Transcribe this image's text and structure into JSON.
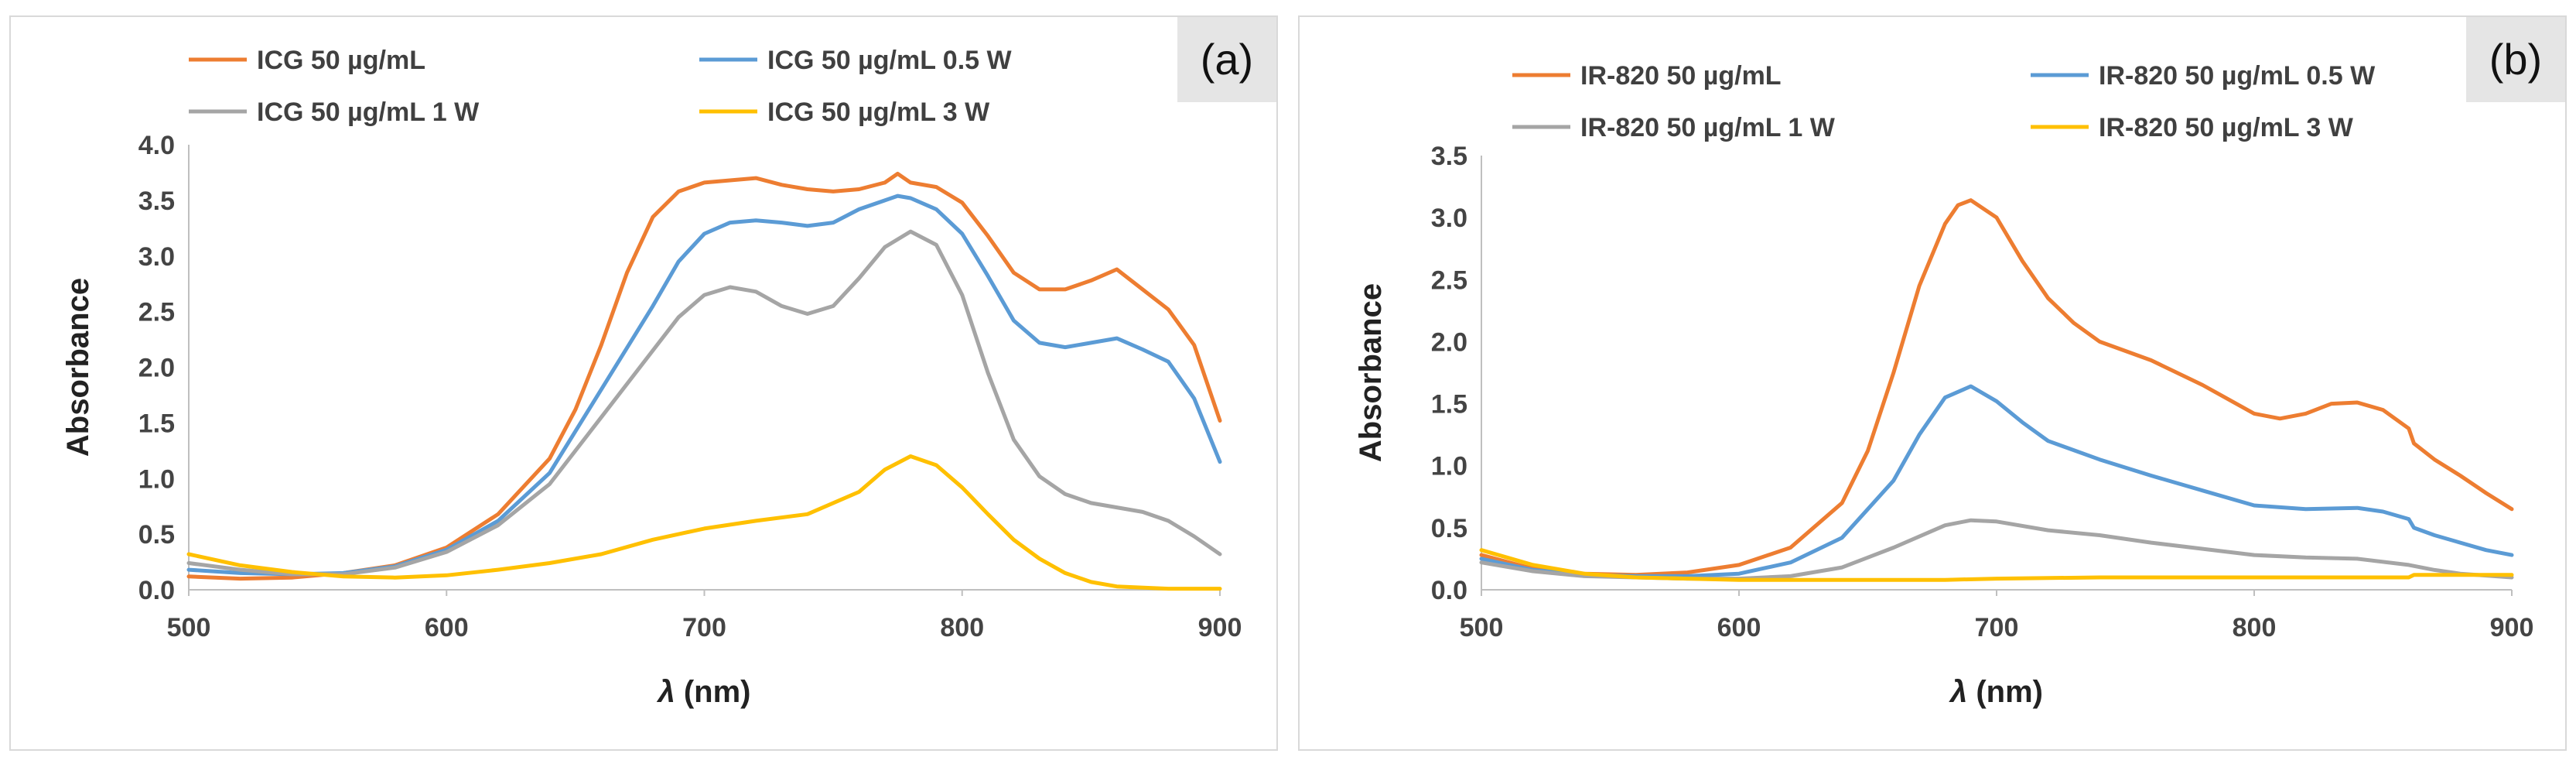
{
  "chart_data": [
    {
      "id": "a",
      "type": "line",
      "panel_label": "(a)",
      "xlabel_symbol": "λ",
      "xlabel_unit": " (nm)",
      "ylabel": "Absorbance",
      "xlim": [
        500,
        900
      ],
      "ylim": [
        0,
        4
      ],
      "x_ticks": [
        500,
        600,
        700,
        800,
        900
      ],
      "y_ticks": [
        "0.0",
        "0.5",
        "1.0",
        "1.5",
        "2.0",
        "2.5",
        "3.0",
        "3.5",
        "4.0"
      ],
      "grid": false,
      "legend_position": "top",
      "series": [
        {
          "name": "ICG 50 µg/mL",
          "color": "#ED7D31",
          "points": [
            [
              500,
              0.12
            ],
            [
              520,
              0.1
            ],
            [
              540,
              0.11
            ],
            [
              560,
              0.15
            ],
            [
              580,
              0.22
            ],
            [
              600,
              0.38
            ],
            [
              620,
              0.68
            ],
            [
              640,
              1.18
            ],
            [
              650,
              1.62
            ],
            [
              660,
              2.2
            ],
            [
              670,
              2.85
            ],
            [
              680,
              3.35
            ],
            [
              690,
              3.58
            ],
            [
              700,
              3.66
            ],
            [
              710,
              3.68
            ],
            [
              720,
              3.7
            ],
            [
              730,
              3.64
            ],
            [
              740,
              3.6
            ],
            [
              750,
              3.58
            ],
            [
              760,
              3.6
            ],
            [
              770,
              3.66
            ],
            [
              775,
              3.74
            ],
            [
              780,
              3.66
            ],
            [
              790,
              3.62
            ],
            [
              800,
              3.48
            ],
            [
              810,
              3.18
            ],
            [
              820,
              2.85
            ],
            [
              830,
              2.7
            ],
            [
              840,
              2.7
            ],
            [
              850,
              2.78
            ],
            [
              860,
              2.88
            ],
            [
              870,
              2.7
            ],
            [
              880,
              2.52
            ],
            [
              890,
              2.2
            ],
            [
              900,
              1.52
            ]
          ]
        },
        {
          "name": "ICG 50 µg/mL 0.5 W",
          "color": "#5B9BD5",
          "points": [
            [
              500,
              0.18
            ],
            [
              520,
              0.15
            ],
            [
              540,
              0.14
            ],
            [
              560,
              0.15
            ],
            [
              580,
              0.21
            ],
            [
              600,
              0.36
            ],
            [
              620,
              0.62
            ],
            [
              640,
              1.05
            ],
            [
              660,
              1.8
            ],
            [
              680,
              2.55
            ],
            [
              690,
              2.95
            ],
            [
              700,
              3.2
            ],
            [
              710,
              3.3
            ],
            [
              720,
              3.32
            ],
            [
              730,
              3.3
            ],
            [
              740,
              3.27
            ],
            [
              750,
              3.3
            ],
            [
              760,
              3.42
            ],
            [
              770,
              3.5
            ],
            [
              775,
              3.54
            ],
            [
              780,
              3.52
            ],
            [
              790,
              3.42
            ],
            [
              800,
              3.2
            ],
            [
              810,
              2.82
            ],
            [
              820,
              2.42
            ],
            [
              830,
              2.22
            ],
            [
              840,
              2.18
            ],
            [
              850,
              2.22
            ],
            [
              860,
              2.26
            ],
            [
              870,
              2.16
            ],
            [
              880,
              2.05
            ],
            [
              890,
              1.72
            ],
            [
              900,
              1.15
            ]
          ]
        },
        {
          "name": "ICG 50 µg/mL 1 W",
          "color": "#A5A5A5",
          "points": [
            [
              500,
              0.24
            ],
            [
              520,
              0.18
            ],
            [
              540,
              0.14
            ],
            [
              560,
              0.14
            ],
            [
              580,
              0.2
            ],
            [
              600,
              0.34
            ],
            [
              620,
              0.58
            ],
            [
              640,
              0.95
            ],
            [
              660,
              1.55
            ],
            [
              680,
              2.15
            ],
            [
              690,
              2.45
            ],
            [
              700,
              2.65
            ],
            [
              710,
              2.72
            ],
            [
              720,
              2.68
            ],
            [
              730,
              2.55
            ],
            [
              740,
              2.48
            ],
            [
              750,
              2.55
            ],
            [
              760,
              2.8
            ],
            [
              770,
              3.08
            ],
            [
              780,
              3.22
            ],
            [
              790,
              3.1
            ],
            [
              800,
              2.65
            ],
            [
              810,
              1.95
            ],
            [
              820,
              1.35
            ],
            [
              830,
              1.02
            ],
            [
              840,
              0.86
            ],
            [
              850,
              0.78
            ],
            [
              860,
              0.74
            ],
            [
              870,
              0.7
            ],
            [
              880,
              0.62
            ],
            [
              890,
              0.48
            ],
            [
              900,
              0.32
            ]
          ]
        },
        {
          "name": "ICG 50 µg/mL 3 W",
          "color": "#FFC000",
          "points": [
            [
              500,
              0.32
            ],
            [
              520,
              0.22
            ],
            [
              540,
              0.16
            ],
            [
              560,
              0.12
            ],
            [
              580,
              0.11
            ],
            [
              600,
              0.13
            ],
            [
              620,
              0.18
            ],
            [
              640,
              0.24
            ],
            [
              660,
              0.32
            ],
            [
              680,
              0.45
            ],
            [
              700,
              0.55
            ],
            [
              720,
              0.62
            ],
            [
              740,
              0.68
            ],
            [
              760,
              0.88
            ],
            [
              770,
              1.08
            ],
            [
              780,
              1.2
            ],
            [
              790,
              1.12
            ],
            [
              800,
              0.92
            ],
            [
              810,
              0.68
            ],
            [
              820,
              0.45
            ],
            [
              830,
              0.28
            ],
            [
              840,
              0.15
            ],
            [
              850,
              0.07
            ],
            [
              860,
              0.03
            ],
            [
              880,
              0.01
            ],
            [
              900,
              0.01
            ]
          ]
        }
      ]
    },
    {
      "id": "b",
      "type": "line",
      "panel_label": "(b)",
      "xlabel_symbol": "λ",
      "xlabel_unit": " (nm)",
      "ylabel": "Absorbance",
      "xlim": [
        500,
        900
      ],
      "ylim": [
        0,
        3.5
      ],
      "x_ticks": [
        500,
        600,
        700,
        800,
        900
      ],
      "y_ticks": [
        "0.0",
        "0.5",
        "1.0",
        "1.5",
        "2.0",
        "2.5",
        "3.0",
        "3.5"
      ],
      "grid": false,
      "legend_position": "top",
      "series": [
        {
          "name": "IR-820 50 µg/mL",
          "color": "#ED7D31",
          "points": [
            [
              500,
              0.28
            ],
            [
              520,
              0.17
            ],
            [
              540,
              0.13
            ],
            [
              560,
              0.12
            ],
            [
              580,
              0.14
            ],
            [
              600,
              0.2
            ],
            [
              620,
              0.34
            ],
            [
              640,
              0.7
            ],
            [
              650,
              1.12
            ],
            [
              660,
              1.75
            ],
            [
              670,
              2.45
            ],
            [
              680,
              2.95
            ],
            [
              685,
              3.1
            ],
            [
              690,
              3.14
            ],
            [
              700,
              3.0
            ],
            [
              710,
              2.65
            ],
            [
              720,
              2.35
            ],
            [
              730,
              2.15
            ],
            [
              740,
              2.0
            ],
            [
              760,
              1.85
            ],
            [
              780,
              1.65
            ],
            [
              800,
              1.42
            ],
            [
              810,
              1.38
            ],
            [
              820,
              1.42
            ],
            [
              830,
              1.5
            ],
            [
              840,
              1.51
            ],
            [
              850,
              1.45
            ],
            [
              860,
              1.3
            ],
            [
              862,
              1.18
            ],
            [
              870,
              1.05
            ],
            [
              880,
              0.92
            ],
            [
              890,
              0.78
            ],
            [
              900,
              0.65
            ]
          ]
        },
        {
          "name": "IR-820 50 µg/mL 0.5 W",
          "color": "#5B9BD5",
          "points": [
            [
              500,
              0.25
            ],
            [
              520,
              0.16
            ],
            [
              540,
              0.12
            ],
            [
              560,
              0.11
            ],
            [
              580,
              0.11
            ],
            [
              600,
              0.13
            ],
            [
              620,
              0.22
            ],
            [
              640,
              0.42
            ],
            [
              660,
              0.88
            ],
            [
              670,
              1.25
            ],
            [
              680,
              1.55
            ],
            [
              690,
              1.64
            ],
            [
              700,
              1.52
            ],
            [
              710,
              1.35
            ],
            [
              720,
              1.2
            ],
            [
              740,
              1.05
            ],
            [
              760,
              0.92
            ],
            [
              780,
              0.8
            ],
            [
              800,
              0.68
            ],
            [
              820,
              0.65
            ],
            [
              840,
              0.66
            ],
            [
              850,
              0.63
            ],
            [
              860,
              0.57
            ],
            [
              862,
              0.5
            ],
            [
              870,
              0.44
            ],
            [
              880,
              0.38
            ],
            [
              890,
              0.32
            ],
            [
              900,
              0.28
            ]
          ]
        },
        {
          "name": "IR-820 50 µg/mL 1 W",
          "color": "#A5A5A5",
          "points": [
            [
              500,
              0.22
            ],
            [
              520,
              0.15
            ],
            [
              540,
              0.11
            ],
            [
              560,
              0.1
            ],
            [
              580,
              0.09
            ],
            [
              600,
              0.09
            ],
            [
              620,
              0.11
            ],
            [
              640,
              0.18
            ],
            [
              660,
              0.34
            ],
            [
              680,
              0.52
            ],
            [
              690,
              0.56
            ],
            [
              700,
              0.55
            ],
            [
              720,
              0.48
            ],
            [
              740,
              0.44
            ],
            [
              760,
              0.38
            ],
            [
              780,
              0.33
            ],
            [
              800,
              0.28
            ],
            [
              820,
              0.26
            ],
            [
              840,
              0.25
            ],
            [
              860,
              0.2
            ],
            [
              870,
              0.16
            ],
            [
              880,
              0.13
            ],
            [
              900,
              0.1
            ]
          ]
        },
        {
          "name": "IR-820 50 µg/mL 3 W",
          "color": "#FFC000",
          "points": [
            [
              500,
              0.32
            ],
            [
              520,
              0.2
            ],
            [
              540,
              0.13
            ],
            [
              560,
              0.1
            ],
            [
              580,
              0.09
            ],
            [
              600,
              0.08
            ],
            [
              640,
              0.08
            ],
            [
              680,
              0.08
            ],
            [
              700,
              0.09
            ],
            [
              740,
              0.1
            ],
            [
              780,
              0.1
            ],
            [
              820,
              0.1
            ],
            [
              860,
              0.1
            ],
            [
              862,
              0.12
            ],
            [
              880,
              0.12
            ],
            [
              900,
              0.12
            ]
          ]
        }
      ]
    }
  ]
}
